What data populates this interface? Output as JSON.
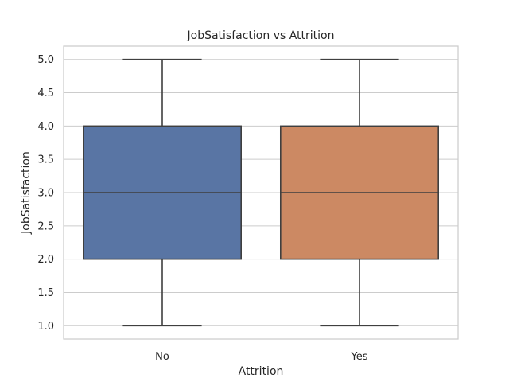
{
  "chart_data": {
    "type": "box",
    "title": "JobSatisfaction vs Attrition",
    "xlabel": "Attrition",
    "ylabel": "JobSatisfaction",
    "ylim": [
      0.8,
      5.2
    ],
    "yticks": [
      "1.0",
      "1.5",
      "2.0",
      "2.5",
      "3.0",
      "3.5",
      "4.0",
      "4.5",
      "5.0"
    ],
    "grid": true,
    "categories": [
      "No",
      "Yes"
    ],
    "boxes": [
      {
        "category": "No",
        "min": 1.0,
        "q1": 2.0,
        "median": 3.0,
        "q3": 4.0,
        "max": 5.0,
        "color": "#5975a4"
      },
      {
        "category": "Yes",
        "min": 1.0,
        "q1": 2.0,
        "median": 3.0,
        "q3": 4.0,
        "max": 5.0,
        "color": "#cc8963"
      }
    ]
  }
}
